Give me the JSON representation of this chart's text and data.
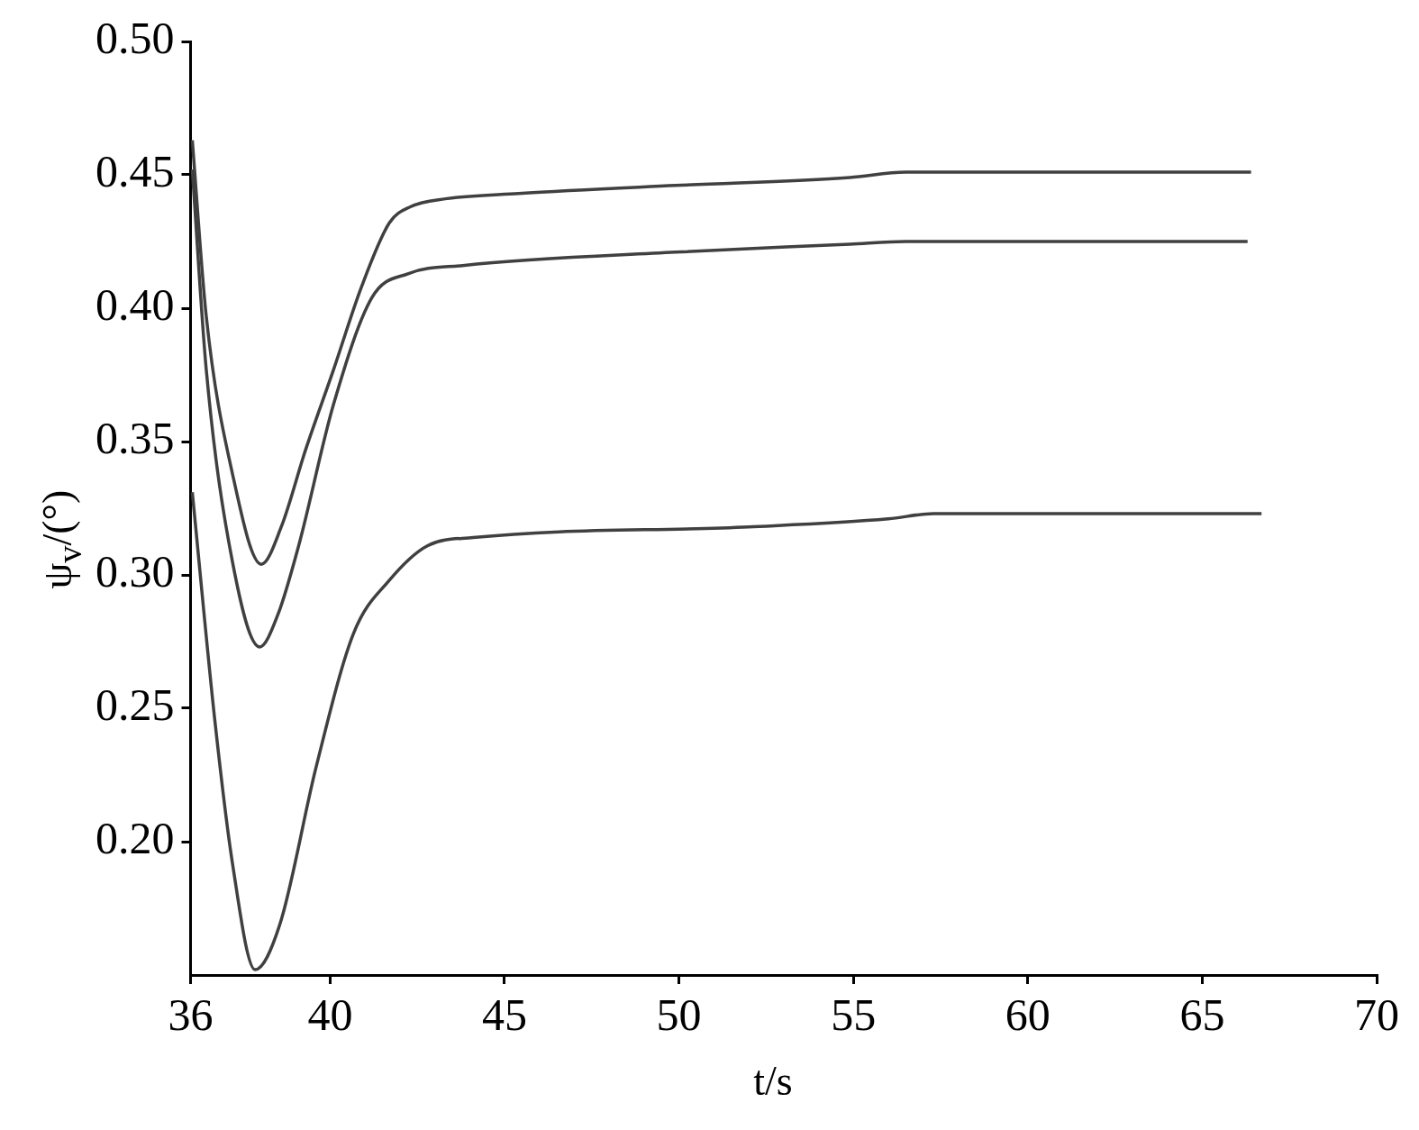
{
  "chart_data": {
    "type": "line",
    "xlabel": "t/s",
    "ylabel": "ψ$_{v}$/(°)",
    "xlim": [
      36,
      70
    ],
    "xticks": [
      36,
      40,
      45,
      50,
      55,
      60,
      65,
      70
    ],
    "ylim": [
      0.15,
      0.5
    ],
    "yticks": [
      {
        "value": 0.2,
        "label": "0.20"
      },
      0.25,
      {
        "value": 0.3,
        "label": "0.30"
      },
      0.35,
      {
        "value": 0.4,
        "label": "0.40"
      },
      0.45,
      {
        "value": 0.5,
        "label": "0.50"
      }
    ],
    "grid": false,
    "legend": false,
    "marker": "none",
    "line_style": "solid",
    "series": [
      {
        "color": "#404040",
        "x": [
          36.05,
          36.45,
          37.2,
          38.03,
          38.6,
          39.3,
          40.1,
          40.9,
          41.7,
          42.3,
          43.3,
          45.4,
          49.9,
          54.9,
          56.5,
          66.4
        ],
        "values": [
          0.463,
          0.397,
          0.338,
          0.304,
          0.318,
          0.347,
          0.377,
          0.408,
          0.432,
          0.438,
          0.441,
          0.443,
          0.446,
          0.449,
          0.451,
          0.451
        ]
      },
      {
        "color": "#404040",
        "x": [
          36.05,
          36.45,
          37.2,
          37.98,
          38.5,
          39.1,
          40.1,
          41.2,
          42.25,
          43.8,
          49.9,
          54.9,
          56.5,
          66.3
        ],
        "values": [
          0.452,
          0.377,
          0.305,
          0.273,
          0.285,
          0.311,
          0.364,
          0.404,
          0.413,
          0.416,
          0.421,
          0.424,
          0.425,
          0.425
        ]
      },
      {
        "color": "#404040",
        "x": [
          36.05,
          36.7,
          37.2,
          37.85,
          38.56,
          39.6,
          40.67,
          41.7,
          42.8,
          44.1,
          52.0,
          56.0,
          57.3,
          66.7
        ],
        "values": [
          0.331,
          0.245,
          0.192,
          0.152,
          0.169,
          0.228,
          0.278,
          0.298,
          0.311,
          0.314,
          0.318,
          0.321,
          0.323,
          0.323
        ]
      }
    ]
  }
}
